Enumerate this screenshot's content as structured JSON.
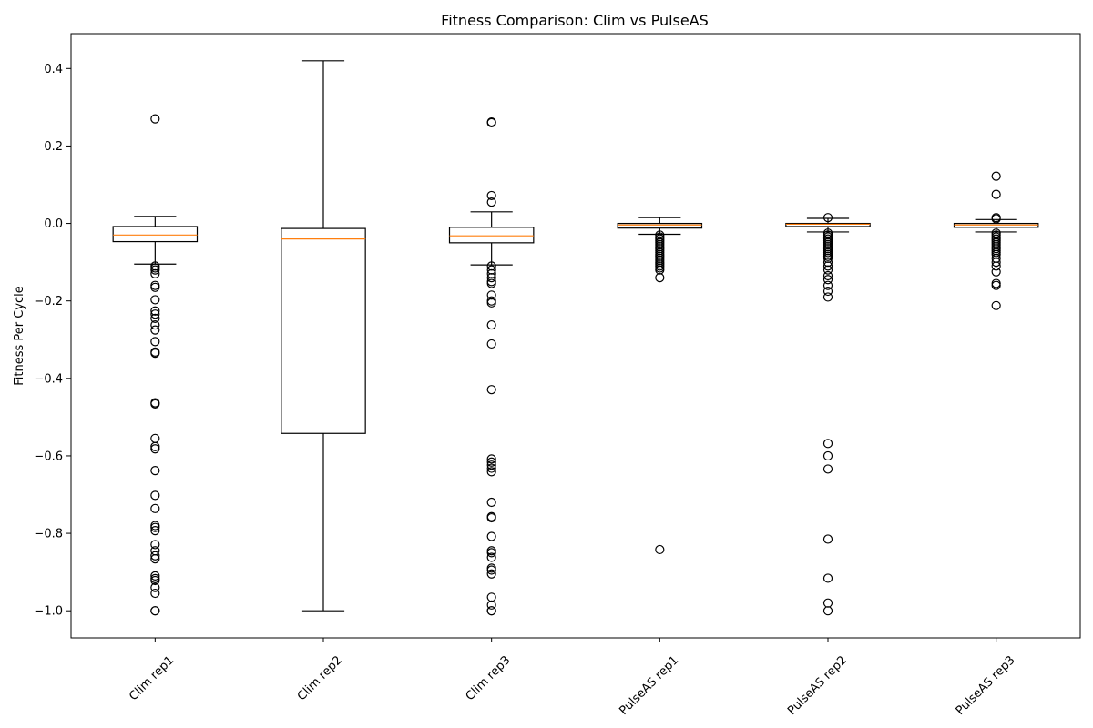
{
  "chart_data": {
    "type": "box",
    "title": "Fitness Comparison: Clim vs PulseAS",
    "xlabel": "",
    "ylabel": "Fitness Per Cycle",
    "ylim": [
      -1.07,
      0.49
    ],
    "yticks": [
      -1.0,
      -0.8,
      -0.6,
      -0.4,
      -0.2,
      0.0,
      0.2,
      0.4
    ],
    "ytick_labels": [
      "−1.0",
      "−0.8",
      "−0.6",
      "−0.4",
      "−0.2",
      "0.0",
      "0.2",
      "0.4"
    ],
    "grid": false,
    "colors": {
      "box": "#000000",
      "median": "#ff7f0e",
      "flier": "#000000"
    },
    "categories": [
      "Clim rep1",
      "Clim rep2",
      "Clim rep3",
      "PulseAS rep1",
      "PulseAS rep2",
      "PulseAS rep3"
    ],
    "boxes": [
      {
        "label": "Clim rep1",
        "whisker_low": -0.105,
        "q1": -0.047,
        "median": -0.03,
        "q3": -0.008,
        "whisker_high": 0.018,
        "fliers": [
          0.27,
          -0.11,
          -0.115,
          -0.12,
          -0.13,
          -0.16,
          -0.165,
          -0.197,
          -0.226,
          -0.234,
          -0.245,
          -0.262,
          -0.275,
          -0.305,
          -0.332,
          -0.335,
          -0.463,
          -0.466,
          -0.555,
          -0.576,
          -0.582,
          -0.638,
          -0.702,
          -0.736,
          -0.78,
          -0.785,
          -0.793,
          -0.829,
          -0.845,
          -0.858,
          -0.866,
          -0.91,
          -0.917,
          -0.922,
          -0.94,
          -0.955,
          -1.0,
          -1.0
        ]
      },
      {
        "label": "Clim rep2",
        "whisker_low": -1.0,
        "q1": -0.542,
        "median": -0.04,
        "q3": -0.013,
        "whisker_high": 0.42,
        "fliers": []
      },
      {
        "label": "Clim rep3",
        "whisker_low": -0.107,
        "q1": -0.05,
        "median": -0.032,
        "q3": -0.01,
        "whisker_high": 0.03,
        "fliers": [
          0.262,
          0.26,
          0.072,
          0.055,
          -0.11,
          -0.12,
          -0.13,
          -0.14,
          -0.15,
          -0.155,
          -0.185,
          -0.2,
          -0.205,
          -0.262,
          -0.311,
          -0.429,
          -0.608,
          -0.616,
          -0.624,
          -0.632,
          -0.641,
          -0.72,
          -0.757,
          -0.76,
          -0.808,
          -0.845,
          -0.85,
          -0.862,
          -0.89,
          -0.895,
          -0.905,
          -0.965,
          -0.985,
          -1.0,
          -1.0
        ]
      },
      {
        "label": "PulseAS rep1",
        "whisker_low": -0.028,
        "q1": -0.012,
        "median": -0.004,
        "q3": 0.0,
        "whisker_high": 0.015,
        "fliers": [
          -0.03,
          -0.035,
          -0.04,
          -0.045,
          -0.05,
          -0.055,
          -0.06,
          -0.065,
          -0.07,
          -0.075,
          -0.08,
          -0.085,
          -0.09,
          -0.095,
          -0.1,
          -0.105,
          -0.11,
          -0.115,
          -0.12,
          -0.14,
          -0.842
        ]
      },
      {
        "label": "PulseAS rep2",
        "whisker_low": -0.022,
        "q1": -0.008,
        "median": -0.002,
        "q3": 0.0,
        "whisker_high": 0.013,
        "fliers": [
          0.015,
          -0.025,
          -0.03,
          -0.035,
          -0.04,
          -0.045,
          -0.05,
          -0.055,
          -0.06,
          -0.065,
          -0.07,
          -0.075,
          -0.08,
          -0.085,
          -0.09,
          -0.1,
          -0.11,
          -0.12,
          -0.135,
          -0.145,
          -0.16,
          -0.175,
          -0.19,
          -0.568,
          -0.6,
          -0.634,
          -0.815,
          -0.916,
          -0.98,
          -1.0
        ]
      },
      {
        "label": "PulseAS rep3",
        "whisker_low": -0.022,
        "q1": -0.01,
        "median": -0.004,
        "q3": 0.0,
        "whisker_high": 0.01,
        "fliers": [
          0.122,
          0.075,
          0.015,
          0.012,
          -0.025,
          -0.03,
          -0.035,
          -0.04,
          -0.045,
          -0.05,
          -0.055,
          -0.06,
          -0.065,
          -0.07,
          -0.075,
          -0.08,
          -0.09,
          -0.1,
          -0.11,
          -0.125,
          -0.155,
          -0.16,
          -0.212
        ]
      }
    ]
  }
}
